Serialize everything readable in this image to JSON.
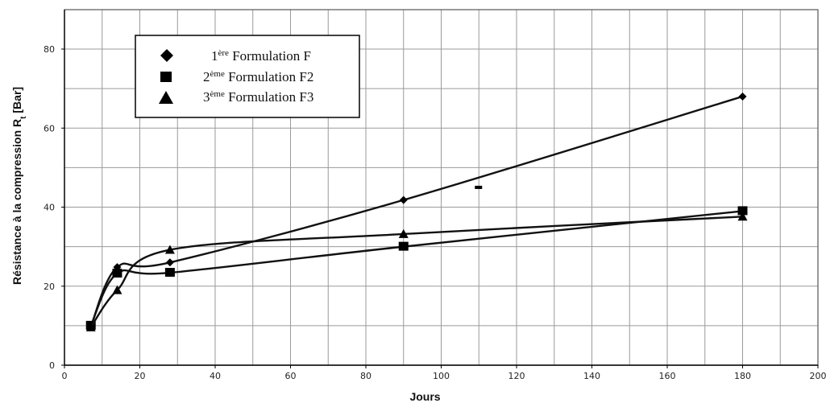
{
  "chart_data": {
    "type": "line",
    "xlabel": "Jours",
    "ylabel": "Résistance à la compression R",
    "ylabel_sub": "t",
    "ylabel_unit": " [Bar]",
    "xlim": [
      0,
      200
    ],
    "ylim": [
      0,
      90
    ],
    "xticks": [
      0,
      20,
      40,
      60,
      80,
      100,
      120,
      140,
      160,
      180,
      200
    ],
    "yticks": [
      0,
      20,
      40,
      60,
      80
    ],
    "grid": true,
    "legend_position": "top-left",
    "series": [
      {
        "name_sup": "ère",
        "name": "1ère Formulation F",
        "name_prefix": "1",
        "name_suffix": " Formulation F",
        "marker": "diamond",
        "x": [
          7,
          14,
          28,
          90,
          180
        ],
        "y": [
          9.8,
          24.8,
          26,
          41.8,
          68
        ]
      },
      {
        "name_sup": "ème",
        "name": "2ème Formulation F2",
        "name_prefix": "2",
        "name_suffix": " Formulation F2",
        "marker": "square",
        "x": [
          7,
          14,
          28,
          90,
          180
        ],
        "y": [
          10,
          23.2,
          23.4,
          30,
          39
        ]
      },
      {
        "name_sup": "ème",
        "name": "3ème Formulation F3",
        "name_prefix": "3",
        "name_suffix": " Formulation F3",
        "marker": "triangle",
        "x": [
          7,
          14,
          28,
          90,
          180
        ],
        "y": [
          9.6,
          19,
          29.2,
          33.2,
          37.6
        ]
      }
    ],
    "stray_mark": {
      "x": 110,
      "y": 45
    }
  }
}
